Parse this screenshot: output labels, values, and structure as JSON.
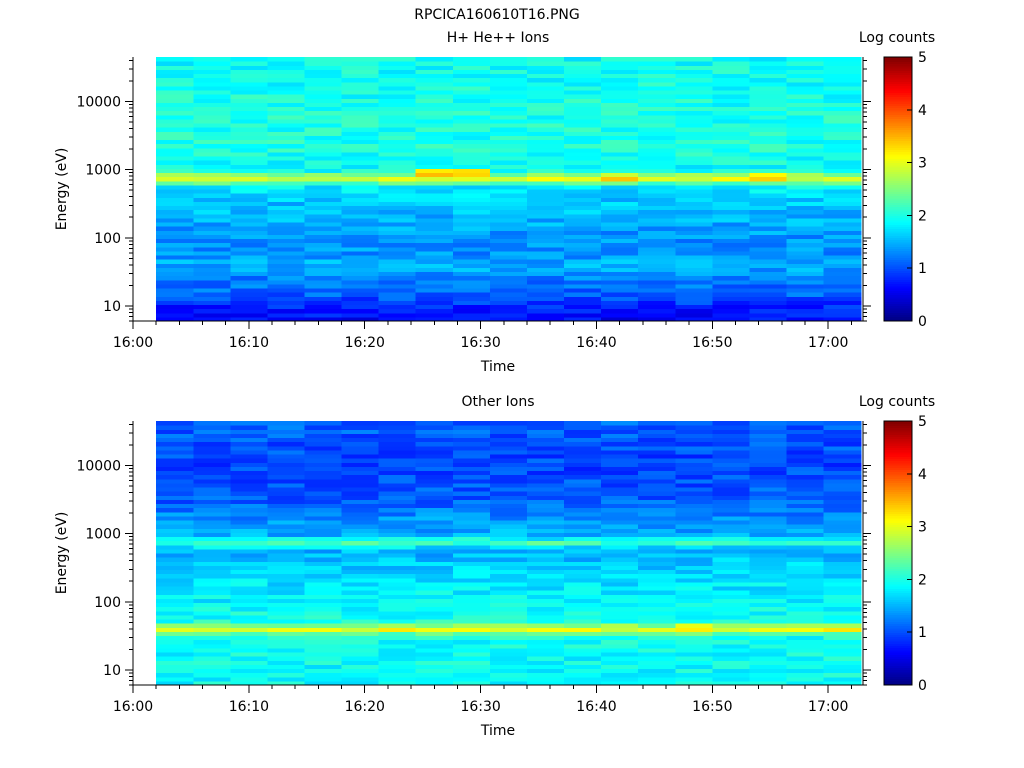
{
  "figure": {
    "title": "RPCICA160610T16.PNG",
    "colors": {
      "background": "#ffffff",
      "axis": "#000000"
    }
  },
  "chart_data": [
    {
      "type": "heatmap",
      "title": "H+ He++ Ions",
      "xlabel": "Time",
      "ylabel": "Energy (eV)",
      "xlim": [
        "16:00",
        "17:03"
      ],
      "ylim": [
        6,
        45000
      ],
      "y_scale": "log",
      "x_ticks": [
        "16:00",
        "16:10",
        "16:20",
        "16:30",
        "16:40",
        "16:50",
        "17:00"
      ],
      "y_ticks": [
        10,
        100,
        1000,
        10000
      ],
      "colorbar": {
        "label": "Log counts",
        "min": 0,
        "max": 5,
        "ticks": [
          0,
          1,
          2,
          3,
          4,
          5
        ],
        "colormap": "jet"
      },
      "data_start": "16:02",
      "time_step_min": 3.2,
      "time_bins": 19,
      "features": [
        {
          "type": "band",
          "energy_ev": 750,
          "log_counts": 3.0
        },
        {
          "type": "peak",
          "time": "16:28",
          "energy_ev": 900,
          "log_counts": 3.5
        },
        {
          "type": "peak",
          "time": "16:42",
          "energy_ev": 780,
          "log_counts": 3.3
        },
        {
          "type": "peak",
          "time": "16:55",
          "energy_ev": 780,
          "log_counts": 3.2
        }
      ],
      "level_profile": [
        {
          "energy_ev": 6,
          "log_counts": 0.6
        },
        {
          "energy_ev": 10,
          "log_counts": 0.8
        },
        {
          "energy_ev": 15,
          "log_counts": 1.1
        },
        {
          "energy_ev": 25,
          "log_counts": 1.25
        },
        {
          "energy_ev": 40,
          "log_counts": 1.5
        },
        {
          "energy_ev": 60,
          "log_counts": 1.35
        },
        {
          "energy_ev": 100,
          "log_counts": 1.35
        },
        {
          "energy_ev": 200,
          "log_counts": 1.5
        },
        {
          "energy_ev": 350,
          "log_counts": 1.6
        },
        {
          "energy_ev": 500,
          "log_counts": 1.75
        },
        {
          "energy_ev": 2000,
          "log_counts": 2.0
        },
        {
          "energy_ev": 5000,
          "log_counts": 2.0
        },
        {
          "energy_ev": 45000,
          "log_counts": 1.9
        }
      ]
    },
    {
      "type": "heatmap",
      "title": "Other Ions",
      "xlabel": "Time",
      "ylabel": "Energy (eV)",
      "xlim": [
        "16:00",
        "17:03"
      ],
      "ylim": [
        6,
        45000
      ],
      "y_scale": "log",
      "x_ticks": [
        "16:00",
        "16:10",
        "16:20",
        "16:30",
        "16:40",
        "16:50",
        "17:00"
      ],
      "y_ticks": [
        10,
        100,
        1000,
        10000
      ],
      "colorbar": {
        "label": "Log counts",
        "min": 0,
        "max": 5,
        "ticks": [
          0,
          1,
          2,
          3,
          4,
          5
        ],
        "colormap": "jet"
      },
      "data_start": "16:02",
      "time_step_min": 3.2,
      "time_bins": 19,
      "features": [
        {
          "type": "band",
          "energy_ev": 40,
          "log_counts": 3.05
        },
        {
          "type": "band",
          "energy_ev": 750,
          "log_counts": 2.2
        },
        {
          "type": "peak",
          "time": "16:48",
          "energy_ev": 42,
          "log_counts": 3.4
        }
      ],
      "level_profile": [
        {
          "energy_ev": 6,
          "log_counts": 1.9
        },
        {
          "energy_ev": 10,
          "log_counts": 1.9
        },
        {
          "energy_ev": 20,
          "log_counts": 1.9
        },
        {
          "energy_ev": 60,
          "log_counts": 1.95
        },
        {
          "energy_ev": 100,
          "log_counts": 1.85
        },
        {
          "energy_ev": 200,
          "log_counts": 1.75
        },
        {
          "energy_ev": 400,
          "log_counts": 1.6
        },
        {
          "energy_ev": 600,
          "log_counts": 1.45
        },
        {
          "energy_ev": 1300,
          "log_counts": 1.45
        },
        {
          "energy_ev": 3000,
          "log_counts": 1.1
        },
        {
          "energy_ev": 10000,
          "log_counts": 0.95
        },
        {
          "energy_ev": 45000,
          "log_counts": 1.1
        }
      ]
    }
  ]
}
